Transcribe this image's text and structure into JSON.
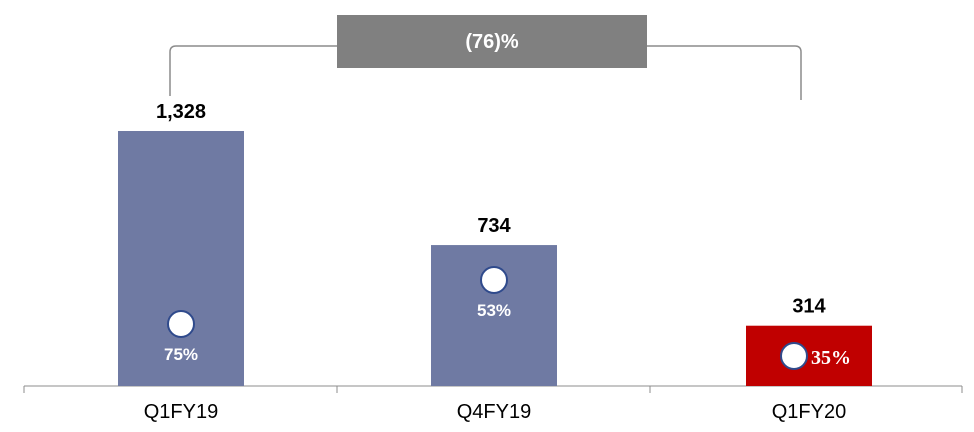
{
  "chart_data": {
    "type": "bar",
    "categories": [
      "Q1FY19",
      "Q4FY19",
      "Q1FY20"
    ],
    "values": [
      1328,
      734,
      314
    ],
    "value_labels": [
      "1,328",
      "734",
      "314"
    ],
    "inner_labels": [
      "75%",
      "53%",
      "35%"
    ],
    "bar_colors": [
      "#6f7aa3",
      "#6f7aa3",
      "#c00000"
    ],
    "ylim": [
      0,
      1328
    ],
    "grid": false,
    "legend": "none",
    "callout": {
      "text": "(76)%",
      "from_category": "Q1FY19",
      "to_category": "Q1FY20",
      "color": "#808080"
    }
  }
}
